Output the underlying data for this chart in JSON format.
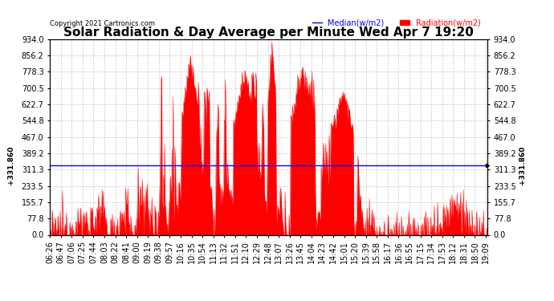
{
  "title": "Solar Radiation & Day Average per Minute Wed Apr 7 19:20",
  "copyright": "Copyright 2021 Cartronics.com",
  "legend_median": "Median(w/m2)",
  "legend_radiation": "Radiation(w/m2)",
  "median_value": 331.86,
  "ylim": [
    0,
    934.0
  ],
  "yticks": [
    0.0,
    77.8,
    155.7,
    233.5,
    311.3,
    389.2,
    467.0,
    544.8,
    622.7,
    700.5,
    778.3,
    856.2,
    934.0
  ],
  "ytick_labels": [
    "0.0",
    "77.8",
    "155.7",
    "233.5",
    "311.3",
    "389.2",
    "467.0",
    "544.8",
    "622.7",
    "700.5",
    "778.3",
    "856.2",
    "934.0"
  ],
  "left_ytick_label": "331.860",
  "radiation_color": "#FF0000",
  "median_color": "#0000FF",
  "background_color": "#FFFFFF",
  "grid_color": "#BBBBBB",
  "title_fontsize": 11,
  "tick_fontsize": 7,
  "xtick_labels": [
    "06:26",
    "06:47",
    "07:06",
    "07:25",
    "07:44",
    "08:03",
    "08:22",
    "08:41",
    "09:00",
    "09:19",
    "09:38",
    "09:57",
    "10:16",
    "10:35",
    "10:54",
    "11:13",
    "11:32",
    "11:51",
    "12:10",
    "12:29",
    "12:48",
    "13:07",
    "13:26",
    "13:45",
    "14:04",
    "14:23",
    "14:42",
    "15:01",
    "15:20",
    "15:39",
    "15:58",
    "16:17",
    "16:36",
    "16:55",
    "17:15",
    "17:34",
    "17:53",
    "18:12",
    "18:31",
    "18:50",
    "19:09"
  ]
}
